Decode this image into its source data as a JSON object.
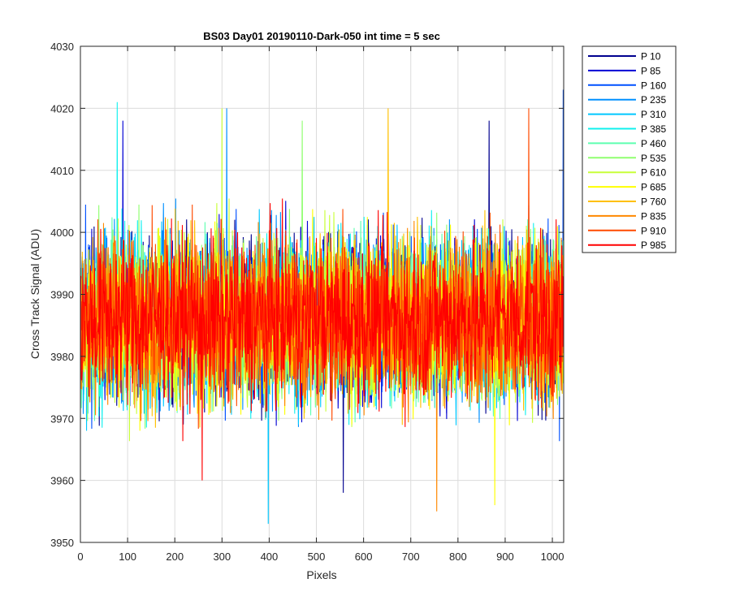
{
  "chart_data": {
    "type": "line",
    "title": "BS03 Day01 20190110-Dark-050 int time = 5 sec",
    "xlabel": "Pixels",
    "ylabel": "Cross Track Signal (ADU)",
    "xlim": [
      0,
      1024
    ],
    "ylim": [
      3950,
      4030
    ],
    "xticks": [
      0,
      100,
      200,
      300,
      400,
      500,
      600,
      700,
      800,
      900,
      1000
    ],
    "yticks": [
      3950,
      3960,
      3970,
      3980,
      3990,
      4000,
      4010,
      4020,
      4030
    ],
    "grid": true,
    "legend_position": "outside-top-right",
    "series_summary": {
      "pixel_count": 1024,
      "typical_range": [
        3966,
        4007
      ],
      "center": 3986,
      "noted_extremes": [
        {
          "series": "P 160",
          "x": 1023,
          "y": 4023
        },
        {
          "series": "P 310",
          "x": 398,
          "y": 3953
        },
        {
          "series": "P 835",
          "x": 755,
          "y": 3955
        },
        {
          "series": "P 685",
          "x": 878,
          "y": 3956
        },
        {
          "series": "P 385",
          "x": 78,
          "y": 4021
        },
        {
          "series": "P 610",
          "x": 300,
          "y": 4020
        },
        {
          "series": "P 910",
          "x": 950,
          "y": 4020
        },
        {
          "series": "P 235",
          "x": 310,
          "y": 4020
        },
        {
          "series": "P 760",
          "x": 652,
          "y": 4020
        },
        {
          "series": "P 85",
          "x": 90,
          "y": 4018
        },
        {
          "series": "P 10",
          "x": 866,
          "y": 4018
        },
        {
          "series": "P 535",
          "x": 470,
          "y": 4018
        },
        {
          "series": "P 985",
          "x": 258,
          "y": 3960
        },
        {
          "series": "P 10",
          "x": 557,
          "y": 3958
        }
      ]
    },
    "series": [
      {
        "name": "P 10",
        "color": "#00008f"
      },
      {
        "name": "P 85",
        "color": "#0000d4"
      },
      {
        "name": "P 160",
        "color": "#0050ff"
      },
      {
        "name": "P 235",
        "color": "#0090ff"
      },
      {
        "name": "P 310",
        "color": "#00c8ff"
      },
      {
        "name": "P 385",
        "color": "#10f0ee"
      },
      {
        "name": "P 460",
        "color": "#5effb0"
      },
      {
        "name": "P 535",
        "color": "#90ff70"
      },
      {
        "name": "P 610",
        "color": "#c8ff38"
      },
      {
        "name": "P 685",
        "color": "#ffff00"
      },
      {
        "name": "P 760",
        "color": "#ffc000"
      },
      {
        "name": "P 835",
        "color": "#ff8800"
      },
      {
        "name": "P 910",
        "color": "#ff4a00"
      },
      {
        "name": "P 985",
        "color": "#ff0000"
      }
    ]
  }
}
